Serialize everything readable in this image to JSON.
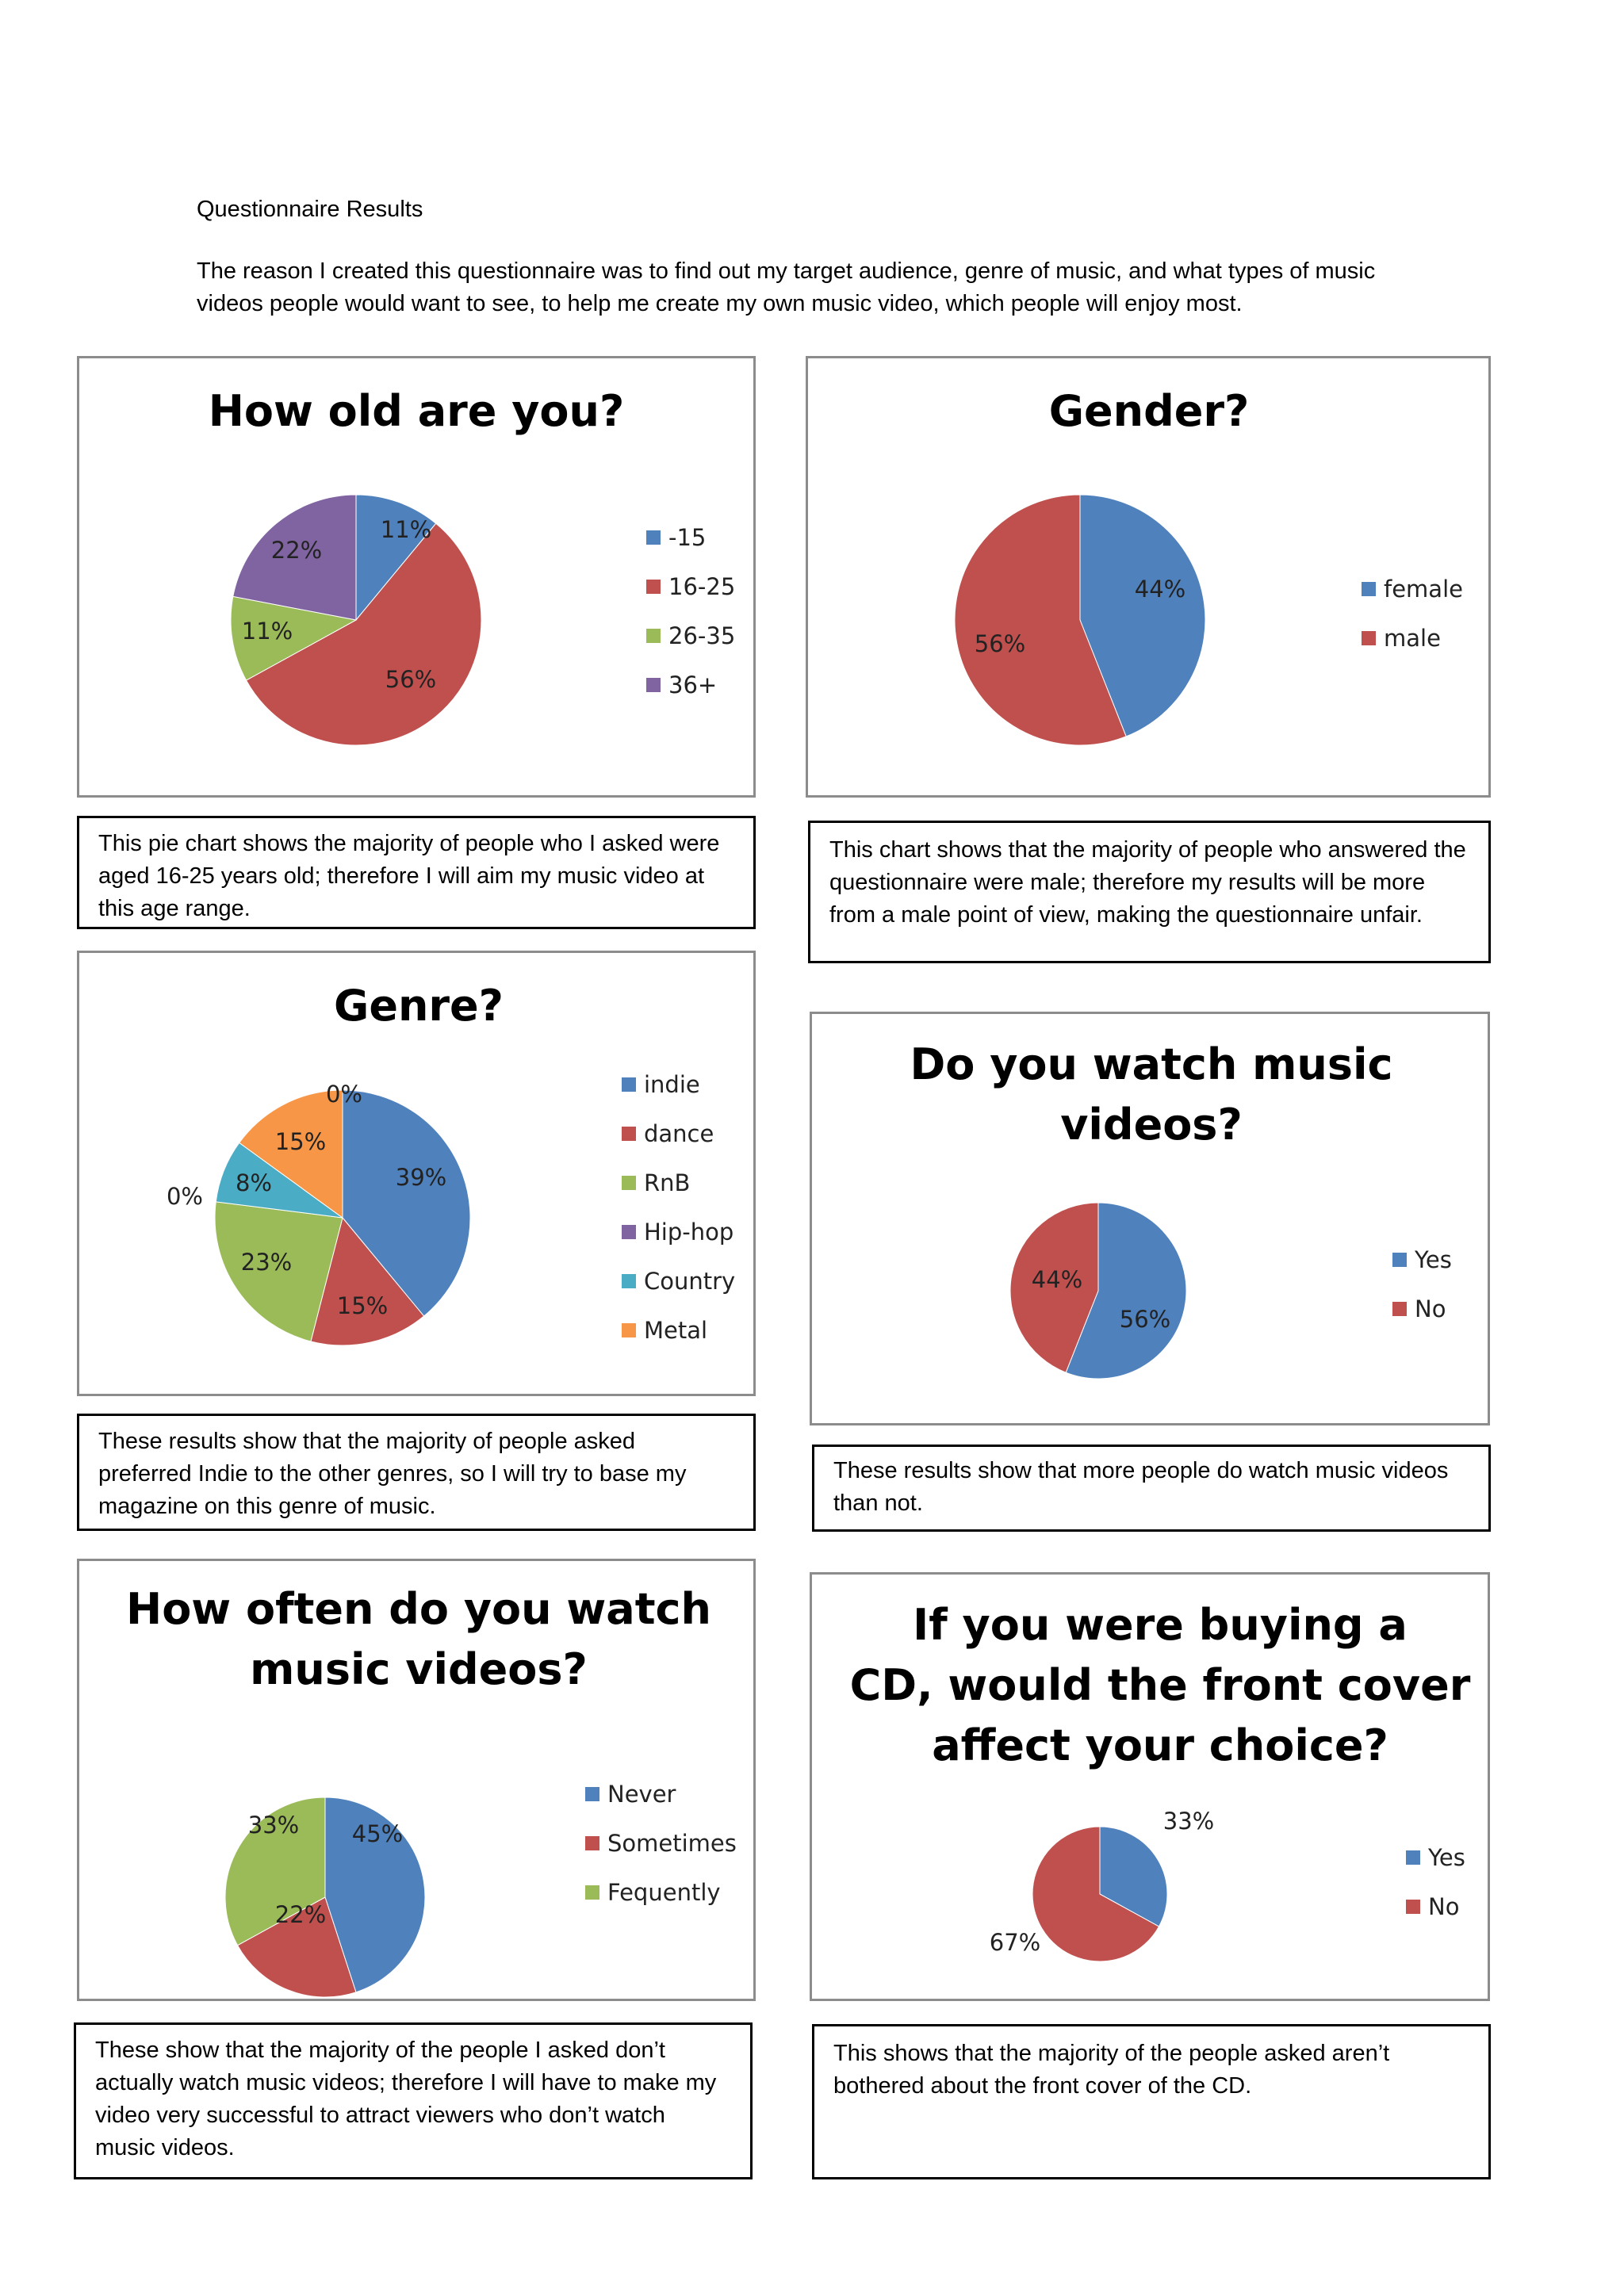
{
  "page": {
    "title": "Questionnaire Results",
    "intro": "The reason I created this questionnaire was to find out my target audience, genre of music, and what types of music videos people would want to see, to help me create my own music video, which people will enjoy most."
  },
  "chart_data": [
    {
      "id": "age",
      "type": "pie",
      "title_lines": [
        "How old are you?"
      ],
      "categories": [
        "-15",
        "16-25",
        "26-35",
        "36+"
      ],
      "values": [
        11,
        56,
        11,
        22
      ],
      "labels": [
        "11%",
        "56%",
        "11%",
        "22%"
      ],
      "colors": [
        "#4f81bd",
        "#c0504d",
        "#9bbb59",
        "#8064a2"
      ],
      "legend": "right"
    },
    {
      "id": "gender",
      "type": "pie",
      "title_lines": [
        "Gender?"
      ],
      "categories": [
        "female",
        "male"
      ],
      "values": [
        44,
        56
      ],
      "labels": [
        "44%",
        "56%"
      ],
      "colors": [
        "#4f81bd",
        "#c0504d"
      ],
      "legend": "right"
    },
    {
      "id": "genre",
      "type": "pie",
      "title_lines": [
        "Genre?"
      ],
      "categories": [
        "indie",
        "dance",
        "RnB",
        "Hip-hop",
        "Country",
        "Metal"
      ],
      "values": [
        39,
        15,
        23,
        0,
        8,
        15
      ],
      "labels": [
        "39%",
        "15%",
        "23%",
        "0%",
        "8%",
        "15%"
      ],
      "extra_labels": [
        "0%"
      ],
      "colors": [
        "#4f81bd",
        "#c0504d",
        "#9bbb59",
        "#8064a2",
        "#4bacc6",
        "#f79646"
      ],
      "legend": "right"
    },
    {
      "id": "watch",
      "type": "pie",
      "title_lines": [
        "Do you watch music",
        "videos?"
      ],
      "categories": [
        "Yes",
        "No"
      ],
      "values": [
        56,
        44
      ],
      "labels": [
        "56%",
        "44%"
      ],
      "colors": [
        "#4f81bd",
        "#c0504d"
      ],
      "legend": "right"
    },
    {
      "id": "often",
      "type": "pie",
      "title_lines": [
        "How often do you watch",
        "music videos?"
      ],
      "categories": [
        "Never",
        "Sometimes",
        "Fequently"
      ],
      "values": [
        45,
        22,
        33
      ],
      "labels": [
        "45%",
        "22%",
        "33%"
      ],
      "colors": [
        "#4f81bd",
        "#c0504d",
        "#9bbb59"
      ],
      "legend": "right"
    },
    {
      "id": "cover",
      "type": "pie",
      "title_lines": [
        "If you were buying a",
        "CD, would the front cover",
        "affect your choice?"
      ],
      "categories": [
        "Yes",
        "No"
      ],
      "values": [
        33,
        67
      ],
      "labels": [
        "33%",
        "67%"
      ],
      "colors": [
        "#4f81bd",
        "#c0504d"
      ],
      "legend": "right"
    }
  ],
  "captions": {
    "age": "This pie chart shows the majority of people who I asked were aged 16-25 years old; therefore I will aim my music video at this age range.",
    "gender": "This chart shows that the majority of people who answered the questionnaire were male; therefore my results will be more from a male point of view, making the questionnaire unfair.",
    "genre": "These results show that the majority of people asked preferred Indie to the other genres, so I will try to base my magazine on this genre of music.",
    "watch": "These results show that more people do watch music videos than not.",
    "often": "These show that the majority of the people I asked don’t actually watch music videos; therefore I will have to make my video very successful to attract viewers who don’t watch music videos.",
    "cover": "This shows that the majority of the people asked aren’t bothered about the front cover of the CD."
  }
}
